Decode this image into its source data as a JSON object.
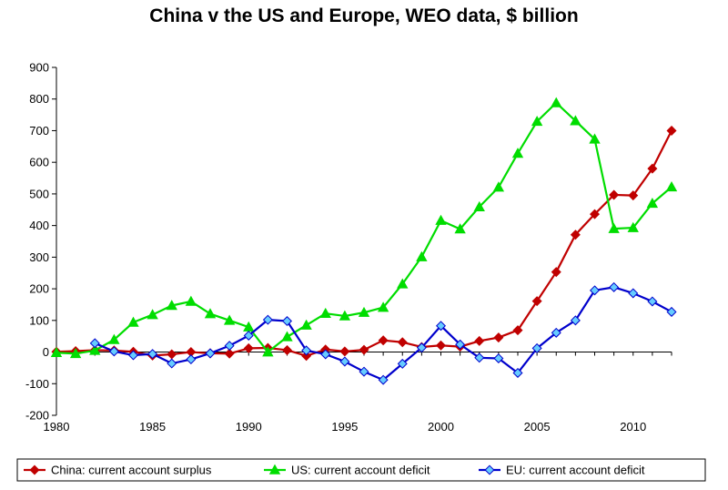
{
  "chart_data": {
    "type": "line",
    "title": "China v the US and Europe, WEO data, $ billion",
    "xlabel": "",
    "ylabel": "",
    "xlim": [
      1980,
      2012
    ],
    "ylim": [
      -200,
      900
    ],
    "x_ticks": [
      1980,
      1985,
      1990,
      1995,
      2000,
      2005,
      2010
    ],
    "y_ticks": [
      -200,
      -100,
      0,
      100,
      200,
      300,
      400,
      500,
      600,
      700,
      800,
      900
    ],
    "grid": false,
    "legend_position": "bottom",
    "x": [
      1980,
      1981,
      1982,
      1983,
      1984,
      1985,
      1986,
      1987,
      1988,
      1989,
      1990,
      1991,
      1992,
      1993,
      1994,
      1995,
      1996,
      1997,
      1998,
      1999,
      2000,
      2001,
      2002,
      2003,
      2004,
      2005,
      2006,
      2007,
      2008,
      2009,
      2010,
      2011,
      2012
    ],
    "series": [
      {
        "name": "China: current account surplus",
        "color": "#c00000",
        "marker": "diamond",
        "values": [
          1,
          3,
          6,
          5,
          1,
          -11,
          -7,
          0,
          -4,
          -5,
          12,
          13,
          6,
          -12,
          8,
          2,
          7,
          37,
          31,
          16,
          21,
          17,
          35,
          46,
          69,
          161,
          253,
          371,
          436,
          497,
          495,
          580,
          700
        ]
      },
      {
        "name": "US: current account deficit",
        "color": "#00dd00",
        "marker": "triangle",
        "values": [
          -2,
          -5,
          5,
          39,
          94,
          118,
          147,
          160,
          121,
          100,
          79,
          0,
          48,
          85,
          122,
          114,
          125,
          141,
          215,
          301,
          416,
          389,
          459,
          521,
          628,
          729,
          788,
          731,
          673,
          390,
          393,
          470,
          522
        ]
      },
      {
        "name": "EU: current account deficit",
        "color": "#0000cc",
        "marker": "diamond",
        "marker_fill": "#66ccff",
        "values": [
          null,
          null,
          28,
          2,
          -10,
          -6,
          -36,
          -23,
          -4,
          20,
          52,
          102,
          98,
          5,
          -7,
          -30,
          -62,
          -88,
          -37,
          14,
          83,
          24,
          -18,
          -20,
          -66,
          12,
          61,
          100,
          195,
          205,
          186,
          160,
          127
        ]
      }
    ]
  }
}
